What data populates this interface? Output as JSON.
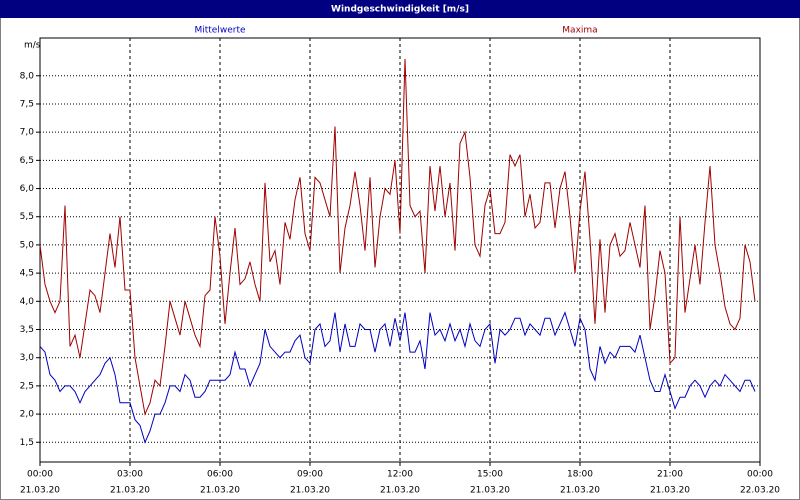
{
  "chart_data": {
    "type": "line",
    "title": "Windgeschwindigkeit [m/s]",
    "y_unit": "m/s",
    "x": [
      0,
      10,
      20,
      30,
      40,
      50,
      60,
      70,
      80,
      90,
      100,
      110,
      120,
      130,
      140,
      150,
      160,
      170,
      180,
      190,
      200,
      210,
      220,
      230,
      240,
      250,
      260,
      270,
      280,
      290,
      300,
      310,
      320,
      330,
      340,
      350,
      360,
      370,
      380,
      390,
      400,
      410,
      420,
      430,
      440,
      450,
      460,
      470,
      480,
      490,
      500,
      510,
      520,
      530,
      540,
      550,
      560,
      570,
      580,
      590,
      600,
      610,
      620,
      630,
      640,
      650,
      660,
      670,
      680,
      690,
      700,
      710,
      720,
      730,
      740,
      750,
      760,
      770,
      780,
      790,
      800,
      810,
      820,
      830,
      840,
      850,
      860,
      870,
      880,
      890,
      900,
      910,
      920,
      930,
      940,
      950,
      960,
      970,
      980,
      990,
      1000,
      1010,
      1020,
      1030,
      1040,
      1050,
      1060,
      1070,
      1080,
      1090,
      1100,
      1110,
      1120,
      1130,
      1140,
      1150,
      1160,
      1170,
      1180,
      1190,
      1200,
      1210,
      1220,
      1230,
      1240,
      1250,
      1260,
      1270,
      1280,
      1290,
      1300,
      1310,
      1320,
      1330,
      1340,
      1350,
      1360,
      1370,
      1380,
      1390,
      1400,
      1410,
      1420,
      1430
    ],
    "series": [
      {
        "name": "Mittelwerte",
        "color": "#0000c0",
        "values": [
          3.2,
          3.1,
          2.7,
          2.6,
          2.4,
          2.5,
          2.5,
          2.4,
          2.2,
          2.4,
          2.5,
          2.6,
          2.7,
          2.9,
          3.0,
          2.7,
          2.2,
          2.2,
          2.2,
          1.9,
          1.8,
          1.5,
          1.7,
          2.0,
          2.0,
          2.2,
          2.5,
          2.5,
          2.4,
          2.7,
          2.6,
          2.3,
          2.3,
          2.4,
          2.6,
          2.6,
          2.6,
          2.6,
          2.7,
          3.1,
          2.8,
          2.8,
          2.5,
          2.7,
          2.9,
          3.5,
          3.2,
          3.1,
          3.0,
          3.1,
          3.1,
          3.3,
          3.4,
          3.0,
          2.9,
          3.5,
          3.6,
          3.2,
          3.3,
          3.8,
          3.1,
          3.6,
          3.2,
          3.2,
          3.6,
          3.5,
          3.5,
          3.1,
          3.5,
          3.6,
          3.2,
          3.7,
          3.3,
          3.8,
          3.1,
          3.1,
          3.3,
          2.8,
          3.8,
          3.4,
          3.5,
          3.3,
          3.6,
          3.3,
          3.5,
          3.2,
          3.6,
          3.3,
          3.2,
          3.5,
          3.6,
          2.9,
          3.5,
          3.4,
          3.5,
          3.7,
          3.7,
          3.4,
          3.6,
          3.5,
          3.4,
          3.7,
          3.7,
          3.4,
          3.6,
          3.8,
          3.5,
          3.2,
          3.7,
          3.5,
          2.8,
          2.6,
          3.2,
          2.9,
          3.1,
          3.0,
          3.2,
          3.2,
          3.2,
          3.1,
          3.4,
          3.0,
          2.6,
          2.4,
          2.4,
          2.7,
          2.4,
          2.1,
          2.3,
          2.3,
          2.5,
          2.6,
          2.5,
          2.3,
          2.5,
          2.6,
          2.5,
          2.7,
          2.6,
          2.5,
          2.4,
          2.6,
          2.6,
          2.4
        ]
      },
      {
        "name": "Maxima",
        "color": "#a00000",
        "values": [
          5.0,
          4.3,
          4.0,
          3.8,
          4.0,
          5.7,
          3.2,
          3.4,
          3.0,
          3.6,
          4.2,
          4.1,
          3.8,
          4.5,
          5.2,
          4.6,
          5.5,
          4.2,
          4.2,
          3.0,
          2.5,
          2.0,
          2.2,
          2.6,
          2.5,
          3.2,
          4.0,
          3.7,
          3.4,
          4.0,
          3.7,
          3.4,
          3.2,
          4.1,
          4.2,
          5.5,
          4.8,
          3.6,
          4.5,
          5.3,
          4.3,
          4.4,
          4.7,
          4.3,
          4.0,
          6.1,
          4.7,
          4.9,
          4.3,
          5.4,
          5.1,
          5.8,
          6.2,
          5.2,
          4.9,
          6.2,
          6.1,
          5.8,
          5.5,
          7.1,
          4.5,
          5.3,
          5.7,
          6.3,
          5.7,
          4.9,
          6.2,
          4.6,
          5.5,
          6.0,
          5.9,
          6.5,
          5.2,
          8.3,
          5.7,
          5.5,
          5.6,
          4.5,
          6.4,
          5.6,
          6.4,
          5.5,
          6.1,
          4.9,
          6.8,
          7.0,
          6.2,
          5.0,
          4.8,
          5.7,
          6.0,
          5.2,
          5.2,
          5.4,
          6.6,
          6.4,
          6.6,
          5.5,
          5.9,
          5.3,
          5.4,
          6.1,
          6.1,
          5.3,
          6.0,
          6.3,
          5.5,
          4.5,
          5.6,
          6.3,
          5.1,
          3.6,
          5.1,
          3.8,
          5.0,
          5.2,
          4.8,
          4.9,
          5.4,
          5.0,
          4.6,
          5.7,
          3.5,
          4.1,
          4.9,
          4.5,
          2.9,
          3.0,
          5.5,
          3.8,
          4.4,
          5.0,
          4.3,
          5.4,
          6.4,
          5.0,
          4.5,
          3.9,
          3.6,
          3.5,
          3.7,
          5.0,
          4.7,
          4.0
        ]
      }
    ],
    "xlim": [
      0,
      1440
    ],
    "xticks": [
      {
        "value": 0,
        "label": [
          "00:00",
          "21.03.20"
        ]
      },
      {
        "value": 180,
        "label": [
          "03:00",
          "21.03.20"
        ]
      },
      {
        "value": 360,
        "label": [
          "06:00",
          "21.03.20"
        ]
      },
      {
        "value": 540,
        "label": [
          "09:00",
          "21.03.20"
        ]
      },
      {
        "value": 720,
        "label": [
          "12:00",
          "21.03.20"
        ]
      },
      {
        "value": 900,
        "label": [
          "15:00",
          "21.03.20"
        ]
      },
      {
        "value": 1080,
        "label": [
          "18:00",
          "21.03.20"
        ]
      },
      {
        "value": 1260,
        "label": [
          "21:00",
          "21.03.20"
        ]
      },
      {
        "value": 1440,
        "label": [
          "00:00",
          "22.03.20"
        ]
      }
    ],
    "ylim": [
      1.15,
      8.67
    ],
    "yticks": [
      {
        "value": 1.5,
        "label": "1,5"
      },
      {
        "value": 2.0,
        "label": "2,0"
      },
      {
        "value": 2.5,
        "label": "2,5"
      },
      {
        "value": 3.0,
        "label": "3,0"
      },
      {
        "value": 3.5,
        "label": "3,5"
      },
      {
        "value": 4.0,
        "label": "4,0"
      },
      {
        "value": 4.5,
        "label": "4,5"
      },
      {
        "value": 5.0,
        "label": "5,0"
      },
      {
        "value": 5.5,
        "label": "5,5"
      },
      {
        "value": 6.0,
        "label": "6,0"
      },
      {
        "value": 6.5,
        "label": "6,5"
      },
      {
        "value": 7.0,
        "label": "7,0"
      },
      {
        "value": 7.5,
        "label": "7,5"
      },
      {
        "value": 8.0,
        "label": "8,0"
      }
    ],
    "grid": true
  }
}
